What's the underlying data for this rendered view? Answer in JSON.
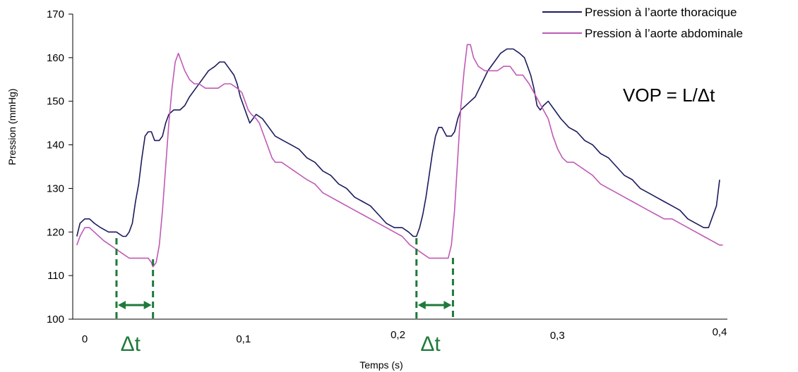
{
  "colors": {
    "thoracic": "#1b1b5e",
    "abdominal": "#c05ab5",
    "marker": "#1e7a3a",
    "axis": "#000000"
  },
  "chart_data": {
    "type": "line",
    "xlabel": "Temps (s)",
    "ylabel": "Pression (mmHg)",
    "xlim": [
      0,
      0.4
    ],
    "ylim": [
      100,
      170
    ],
    "y_ticks": [
      "100",
      "110",
      "120",
      "130",
      "140",
      "150",
      "160",
      "170"
    ],
    "x_ticks": [
      {
        "value": 0,
        "label": "0"
      },
      {
        "value": 0.1,
        "label": "0,1"
      },
      {
        "value": 0.2,
        "label": "0,2"
      },
      {
        "value": 0.3,
        "label": "0,3"
      },
      {
        "value": 0.4,
        "label": "0,4"
      }
    ],
    "grid": false,
    "legend_position": "top-right",
    "annotation": "VOP = L/Δt",
    "delta_markers": [
      {
        "x_start": 0.02,
        "x_end": 0.043,
        "label": "Δt"
      },
      {
        "x_start": 0.209,
        "x_end": 0.232,
        "label": "Δt"
      }
    ],
    "series": [
      {
        "name": "Pression à l’aorte thoracique",
        "color_key": "thoracic",
        "points": [
          [
            -0.005,
            119
          ],
          [
            -0.003,
            122
          ],
          [
            0.0,
            123
          ],
          [
            0.003,
            123
          ],
          [
            0.006,
            122
          ],
          [
            0.01,
            121
          ],
          [
            0.015,
            120
          ],
          [
            0.02,
            120
          ],
          [
            0.024,
            119
          ],
          [
            0.026,
            119
          ],
          [
            0.028,
            120
          ],
          [
            0.03,
            122
          ],
          [
            0.032,
            127
          ],
          [
            0.034,
            131
          ],
          [
            0.036,
            137
          ],
          [
            0.038,
            142
          ],
          [
            0.04,
            143
          ],
          [
            0.042,
            143
          ],
          [
            0.044,
            141
          ],
          [
            0.047,
            141
          ],
          [
            0.049,
            142
          ],
          [
            0.051,
            145
          ],
          [
            0.053,
            147
          ],
          [
            0.056,
            148
          ],
          [
            0.06,
            148
          ],
          [
            0.063,
            149
          ],
          [
            0.066,
            151
          ],
          [
            0.07,
            153
          ],
          [
            0.074,
            155
          ],
          [
            0.078,
            157
          ],
          [
            0.082,
            158
          ],
          [
            0.085,
            159
          ],
          [
            0.088,
            159
          ],
          [
            0.09,
            158
          ],
          [
            0.092,
            157
          ],
          [
            0.094,
            156
          ],
          [
            0.096,
            154
          ],
          [
            0.098,
            151
          ],
          [
            0.1,
            149
          ],
          [
            0.102,
            147
          ],
          [
            0.104,
            145
          ],
          [
            0.106,
            146
          ],
          [
            0.108,
            147
          ],
          [
            0.112,
            146
          ],
          [
            0.116,
            144
          ],
          [
            0.12,
            142
          ],
          [
            0.125,
            141
          ],
          [
            0.13,
            140
          ],
          [
            0.135,
            139
          ],
          [
            0.14,
            137
          ],
          [
            0.145,
            136
          ],
          [
            0.15,
            134
          ],
          [
            0.155,
            133
          ],
          [
            0.16,
            131
          ],
          [
            0.165,
            130
          ],
          [
            0.17,
            128
          ],
          [
            0.175,
            127
          ],
          [
            0.18,
            126
          ],
          [
            0.185,
            124
          ],
          [
            0.19,
            122
          ],
          [
            0.195,
            121
          ],
          [
            0.2,
            121
          ],
          [
            0.204,
            120
          ],
          [
            0.207,
            119
          ],
          [
            0.209,
            119
          ],
          [
            0.211,
            121
          ],
          [
            0.213,
            124
          ],
          [
            0.215,
            128
          ],
          [
            0.217,
            133
          ],
          [
            0.219,
            138
          ],
          [
            0.221,
            142
          ],
          [
            0.223,
            144
          ],
          [
            0.225,
            144
          ],
          [
            0.228,
            142
          ],
          [
            0.231,
            142
          ],
          [
            0.233,
            143
          ],
          [
            0.235,
            146
          ],
          [
            0.237,
            148
          ],
          [
            0.24,
            149
          ],
          [
            0.243,
            150
          ],
          [
            0.246,
            151
          ],
          [
            0.25,
            154
          ],
          [
            0.254,
            157
          ],
          [
            0.258,
            159
          ],
          [
            0.262,
            161
          ],
          [
            0.266,
            162
          ],
          [
            0.27,
            162
          ],
          [
            0.274,
            161
          ],
          [
            0.277,
            160
          ],
          [
            0.279,
            158
          ],
          [
            0.281,
            156
          ],
          [
            0.283,
            153
          ],
          [
            0.285,
            149
          ],
          [
            0.287,
            148
          ],
          [
            0.289,
            149
          ],
          [
            0.292,
            150
          ],
          [
            0.296,
            148
          ],
          [
            0.3,
            146
          ],
          [
            0.305,
            144
          ],
          [
            0.31,
            143
          ],
          [
            0.315,
            141
          ],
          [
            0.32,
            140
          ],
          [
            0.325,
            138
          ],
          [
            0.33,
            137
          ],
          [
            0.335,
            135
          ],
          [
            0.34,
            133
          ],
          [
            0.345,
            132
          ],
          [
            0.35,
            130
          ],
          [
            0.355,
            129
          ],
          [
            0.36,
            128
          ],
          [
            0.365,
            127
          ],
          [
            0.37,
            126
          ],
          [
            0.375,
            125
          ],
          [
            0.38,
            123
          ],
          [
            0.385,
            122
          ],
          [
            0.39,
            121
          ],
          [
            0.393,
            121
          ],
          [
            0.395,
            123
          ],
          [
            0.398,
            126
          ],
          [
            0.4,
            132
          ]
        ]
      },
      {
        "name": "Pression à l’aorte abdominale",
        "color_key": "abdominal",
        "points": [
          [
            -0.005,
            117
          ],
          [
            -0.003,
            119
          ],
          [
            0.0,
            121
          ],
          [
            0.003,
            121
          ],
          [
            0.006,
            120
          ],
          [
            0.009,
            119
          ],
          [
            0.012,
            118
          ],
          [
            0.016,
            117
          ],
          [
            0.02,
            116
          ],
          [
            0.024,
            115
          ],
          [
            0.028,
            114
          ],
          [
            0.032,
            114
          ],
          [
            0.036,
            114
          ],
          [
            0.04,
            114
          ],
          [
            0.042,
            113
          ],
          [
            0.043,
            112
          ],
          [
            0.045,
            113
          ],
          [
            0.047,
            117
          ],
          [
            0.049,
            125
          ],
          [
            0.051,
            135
          ],
          [
            0.053,
            145
          ],
          [
            0.055,
            153
          ],
          [
            0.057,
            159
          ],
          [
            0.059,
            161
          ],
          [
            0.061,
            159
          ],
          [
            0.063,
            157
          ],
          [
            0.066,
            155
          ],
          [
            0.069,
            154
          ],
          [
            0.072,
            154
          ],
          [
            0.076,
            153
          ],
          [
            0.08,
            153
          ],
          [
            0.084,
            153
          ],
          [
            0.088,
            154
          ],
          [
            0.092,
            154
          ],
          [
            0.096,
            153
          ],
          [
            0.099,
            152
          ],
          [
            0.101,
            150
          ],
          [
            0.103,
            148
          ],
          [
            0.105,
            147
          ],
          [
            0.108,
            146
          ],
          [
            0.11,
            145
          ],
          [
            0.112,
            143
          ],
          [
            0.114,
            141
          ],
          [
            0.116,
            139
          ],
          [
            0.118,
            137
          ],
          [
            0.12,
            136
          ],
          [
            0.124,
            136
          ],
          [
            0.128,
            135
          ],
          [
            0.132,
            134
          ],
          [
            0.136,
            133
          ],
          [
            0.14,
            132
          ],
          [
            0.145,
            131
          ],
          [
            0.15,
            129
          ],
          [
            0.155,
            128
          ],
          [
            0.16,
            127
          ],
          [
            0.165,
            126
          ],
          [
            0.17,
            125
          ],
          [
            0.175,
            124
          ],
          [
            0.18,
            123
          ],
          [
            0.185,
            122
          ],
          [
            0.19,
            121
          ],
          [
            0.195,
            120
          ],
          [
            0.2,
            119
          ],
          [
            0.205,
            117
          ],
          [
            0.209,
            116
          ],
          [
            0.213,
            115
          ],
          [
            0.217,
            114
          ],
          [
            0.222,
            114
          ],
          [
            0.226,
            114
          ],
          [
            0.229,
            114
          ],
          [
            0.231,
            117
          ],
          [
            0.233,
            125
          ],
          [
            0.235,
            137
          ],
          [
            0.237,
            149
          ],
          [
            0.239,
            157
          ],
          [
            0.241,
            163
          ],
          [
            0.243,
            163
          ],
          [
            0.245,
            160
          ],
          [
            0.248,
            158
          ],
          [
            0.252,
            157
          ],
          [
            0.256,
            157
          ],
          [
            0.26,
            157
          ],
          [
            0.264,
            158
          ],
          [
            0.268,
            158
          ],
          [
            0.27,
            157
          ],
          [
            0.272,
            156
          ],
          [
            0.276,
            156
          ],
          [
            0.28,
            154
          ],
          [
            0.283,
            152
          ],
          [
            0.286,
            150
          ],
          [
            0.289,
            148
          ],
          [
            0.292,
            146
          ],
          [
            0.295,
            142
          ],
          [
            0.298,
            139
          ],
          [
            0.301,
            137
          ],
          [
            0.304,
            136
          ],
          [
            0.308,
            136
          ],
          [
            0.312,
            135
          ],
          [
            0.316,
            134
          ],
          [
            0.32,
            133
          ],
          [
            0.325,
            131
          ],
          [
            0.33,
            130
          ],
          [
            0.335,
            129
          ],
          [
            0.34,
            128
          ],
          [
            0.345,
            127
          ],
          [
            0.35,
            126
          ],
          [
            0.355,
            125
          ],
          [
            0.36,
            124
          ],
          [
            0.365,
            123
          ],
          [
            0.37,
            123
          ],
          [
            0.375,
            122
          ],
          [
            0.38,
            121
          ],
          [
            0.385,
            120
          ],
          [
            0.39,
            119
          ],
          [
            0.395,
            118
          ],
          [
            0.4,
            117
          ],
          [
            0.402,
            117
          ]
        ]
      }
    ]
  }
}
